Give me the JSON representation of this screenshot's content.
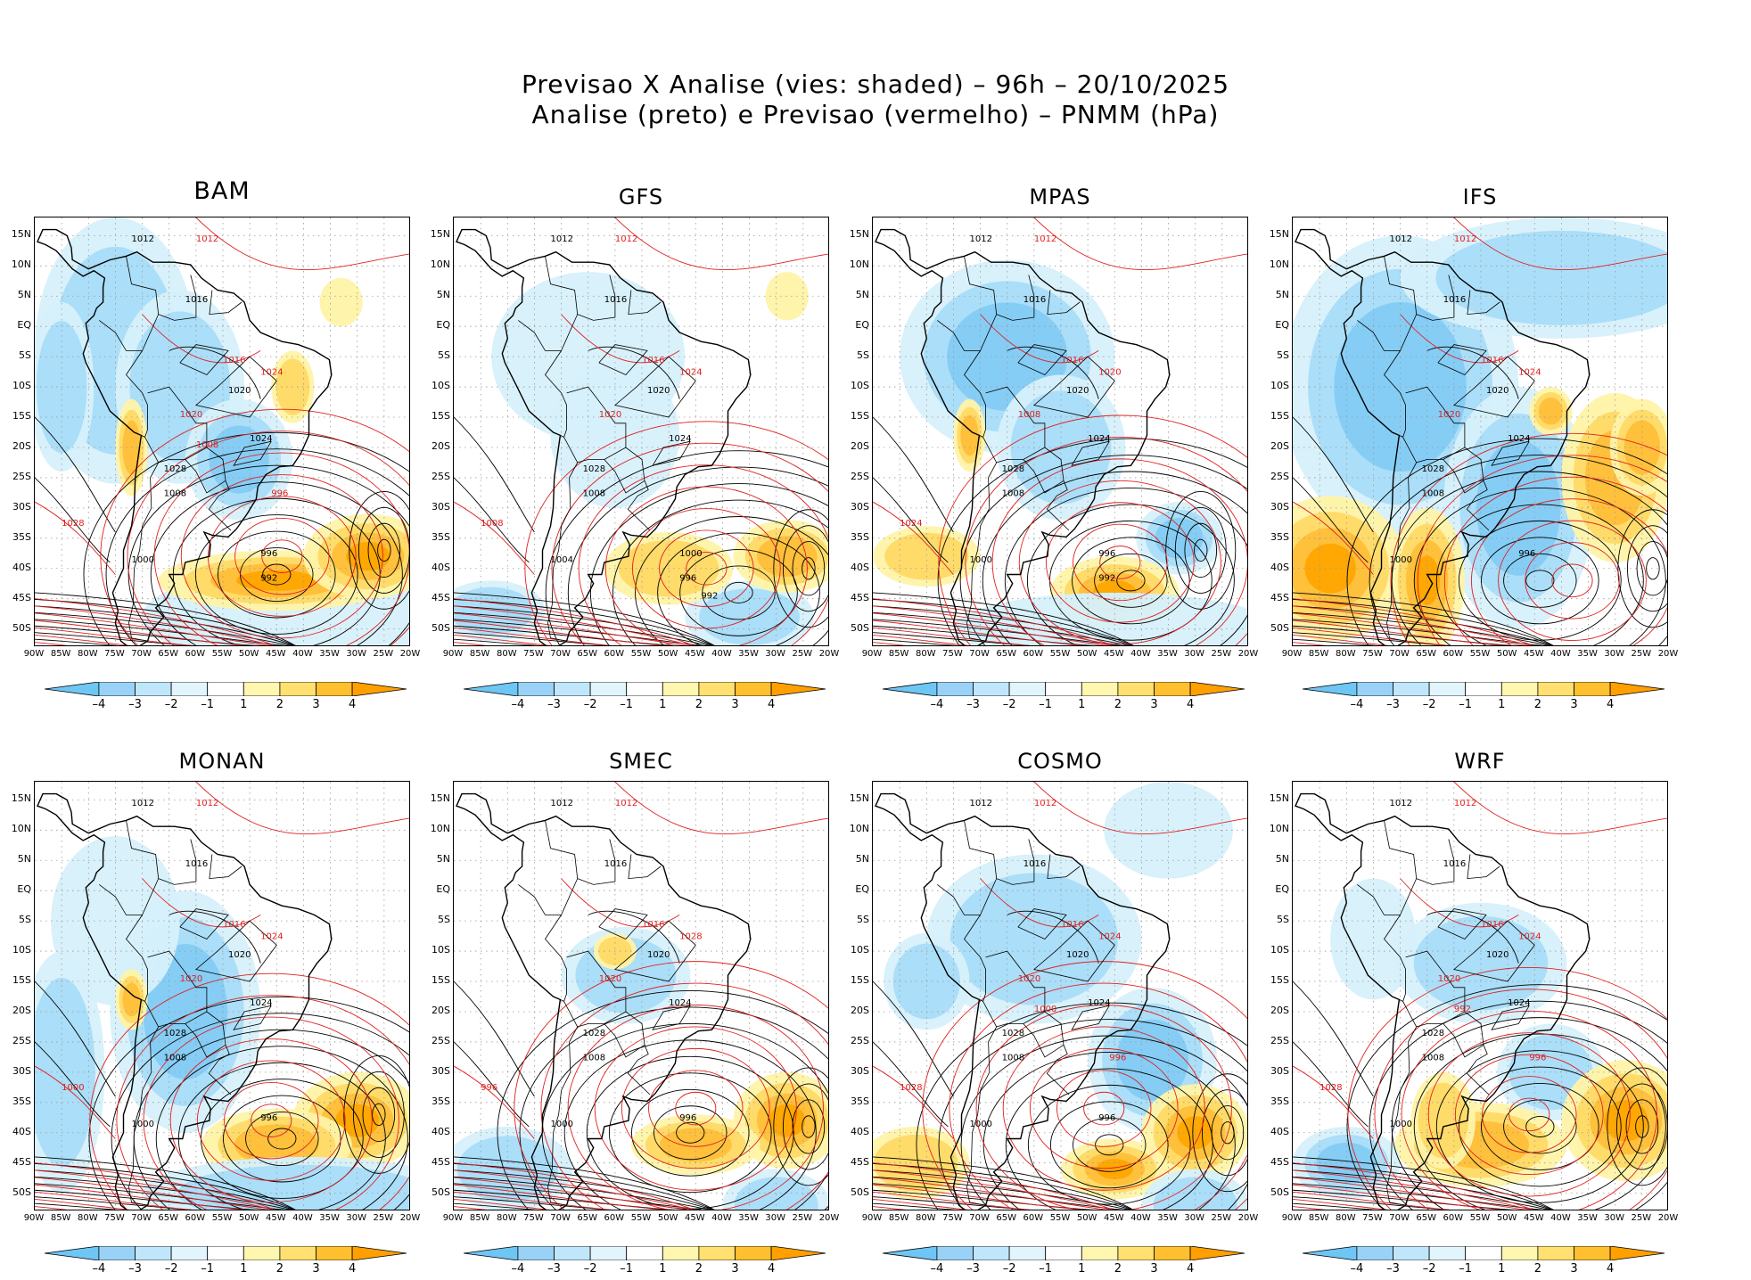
{
  "header": {
    "line1": "Previsao X Analise (vies: shaded) – 96h – 20/10/2025",
    "line2": "Analise (preto) e Previsao (vermelho) – PNMM (hPa)"
  },
  "axes": {
    "lat_labels": [
      "15N",
      "10N",
      "5N",
      "EQ",
      "5S",
      "10S",
      "15S",
      "20S",
      "25S",
      "30S",
      "35S",
      "40S",
      "45S",
      "50S"
    ],
    "lon_labels": [
      "90W",
      "85W",
      "80W",
      "75W",
      "70W",
      "65W",
      "60W",
      "55W",
      "50W",
      "45W",
      "40W",
      "35W",
      "30W",
      "25W",
      "20W"
    ],
    "lat_range": [
      -53,
      18
    ],
    "lon_range": [
      -90,
      -20
    ]
  },
  "colorbar": {
    "labels": [
      "–4",
      "–3",
      "–2",
      "–1",
      "1",
      "2",
      "3",
      "4"
    ],
    "colors": [
      "#6ec6f5",
      "#9ad2f7",
      "#c0e6fb",
      "#e2f5fc",
      "#ffffff",
      "#fff6b0",
      "#ffe070",
      "#ffc030",
      "#ffa000"
    ]
  },
  "colors": {
    "analysis_contour": "#000000",
    "forecast_contour": "#e02020",
    "negative_bias": "#7fc8f5",
    "positive_bias": "#ffb020",
    "coast": "#000000"
  },
  "panels": [
    {
      "name": "BAM",
      "labels_black": [
        "1012",
        "1016",
        "1020",
        "1024",
        "1028",
        "1008",
        "1000",
        "996",
        "992"
      ],
      "labels_red": [
        "1012",
        "1016",
        "1020",
        "1024",
        "1028",
        "1008",
        "996"
      ]
    },
    {
      "name": "GFS",
      "labels_black": [
        "1012",
        "1016",
        "1020",
        "1024",
        "1028",
        "1008",
        "1004",
        "1000",
        "996",
        "992"
      ],
      "labels_red": [
        "1012",
        "1016",
        "1020",
        "1024",
        "1008"
      ]
    },
    {
      "name": "MPAS",
      "labels_black": [
        "1012",
        "1016",
        "1020",
        "1024",
        "1028",
        "1008",
        "1000",
        "996",
        "992"
      ],
      "labels_red": [
        "1012",
        "1016",
        "1008",
        "1020",
        "1024"
      ]
    },
    {
      "name": "IFS",
      "labels_black": [
        "1012",
        "1016",
        "1020",
        "1024",
        "1028",
        "1008",
        "1000",
        "996"
      ],
      "labels_red": [
        "1012",
        "1016",
        "1020",
        "1024"
      ]
    },
    {
      "name": "MONAN",
      "labels_black": [
        "1012",
        "1016",
        "1020",
        "1024",
        "1028",
        "1008",
        "1000",
        "996"
      ],
      "labels_red": [
        "1012",
        "1016",
        "1020",
        "1024",
        "1000"
      ]
    },
    {
      "name": "SMEC",
      "labels_black": [
        "1012",
        "1016",
        "1020",
        "1024",
        "1028",
        "1008",
        "1000",
        "996"
      ],
      "labels_red": [
        "1012",
        "1016",
        "1020",
        "1028",
        "996"
      ]
    },
    {
      "name": "COSMO",
      "labels_black": [
        "1012",
        "1016",
        "1020",
        "1024",
        "1028",
        "1008",
        "1000",
        "996"
      ],
      "labels_red": [
        "1012",
        "1016",
        "1020",
        "1024",
        "1028",
        "1000",
        "996"
      ]
    },
    {
      "name": "WRF",
      "labels_black": [
        "1012",
        "1016",
        "1020",
        "1024",
        "1028",
        "1008",
        "1000"
      ],
      "labels_red": [
        "1012",
        "1016",
        "1020",
        "1024",
        "1028",
        "992",
        "996"
      ]
    }
  ]
}
